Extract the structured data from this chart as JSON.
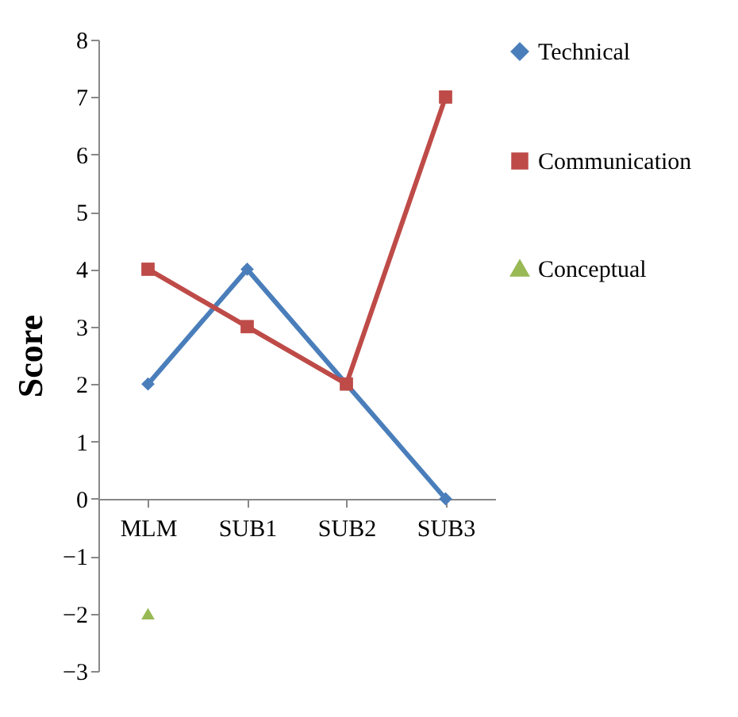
{
  "chart_data": {
    "type": "line",
    "ylabel": "Score",
    "categories": [
      "MLM",
      "SUB1",
      "SUB2",
      "SUB3"
    ],
    "series": [
      {
        "name": "Technical",
        "color": "#4a7ebb",
        "marker": "diamond",
        "values": [
          2,
          4,
          2,
          0
        ]
      },
      {
        "name": "Communication",
        "color": "#be4b48",
        "marker": "square",
        "values": [
          4,
          3,
          2,
          7
        ]
      },
      {
        "name": "Conceptual",
        "color": "#98b954",
        "marker": "triangle",
        "values": [
          -2,
          null,
          null,
          null
        ]
      }
    ],
    "ylim": [
      -3,
      8
    ],
    "yticks": [
      -3,
      -2,
      -1,
      0,
      1,
      2,
      3,
      4,
      5,
      6,
      7,
      8
    ],
    "grid": false,
    "legend": "right"
  }
}
